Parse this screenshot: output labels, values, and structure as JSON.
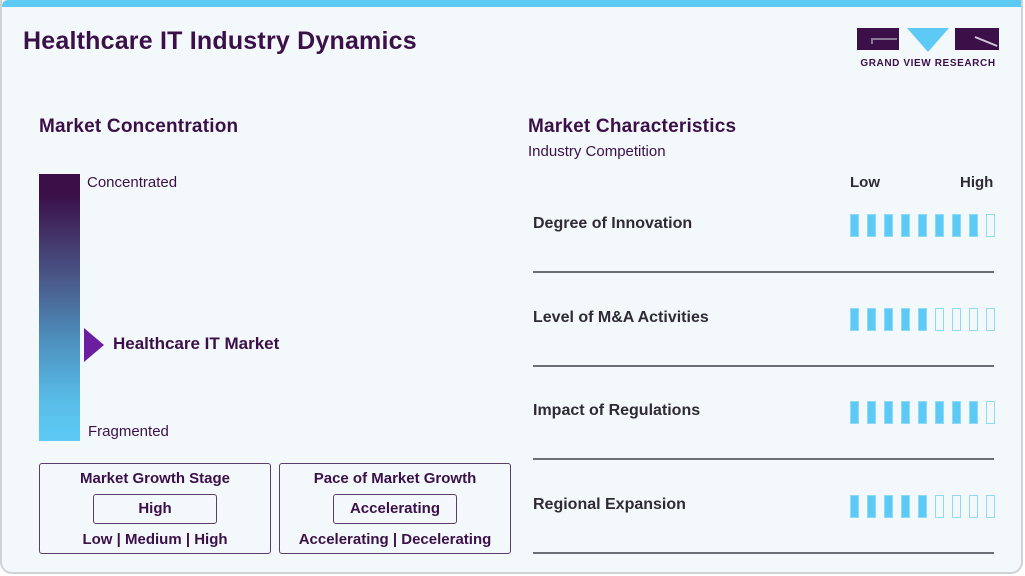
{
  "header": {
    "title": "Healthcare IT Industry Dynamics",
    "logo_text": "GRAND VIEW RESEARCH"
  },
  "colors": {
    "accent_blue": "#5ccaf5",
    "brand_purple": "#3b1049",
    "marker_purple": "#6b1fa0",
    "background": "#f3f8fb"
  },
  "market_concentration": {
    "title": "Market Concentration",
    "top_label": "Concentrated",
    "bottom_label": "Fragmented",
    "marker_label": "Healthcare IT Market",
    "marker_position": "lower-middle"
  },
  "growth_stage": {
    "title": "Market Growth Stage",
    "value": "High",
    "options": "Low | Medium | High"
  },
  "growth_pace": {
    "title": "Pace of Market Growth",
    "value": "Accelerating",
    "options": "Accelerating | Decelerating"
  },
  "characteristics": {
    "title": "Market Characteristics",
    "subtitle": "Industry Competition",
    "scale_low": "Low",
    "scale_high": "High",
    "scale_max": 9,
    "rows": [
      {
        "label": "Degree of Innovation",
        "filled": 8,
        "total": 9
      },
      {
        "label": "Level of M&A Activities",
        "filled": 5,
        "total": 9
      },
      {
        "label": "Impact of Regulations",
        "filled": 8,
        "total": 9
      },
      {
        "label": "Regional Expansion",
        "filled": 5,
        "total": 9
      }
    ]
  }
}
